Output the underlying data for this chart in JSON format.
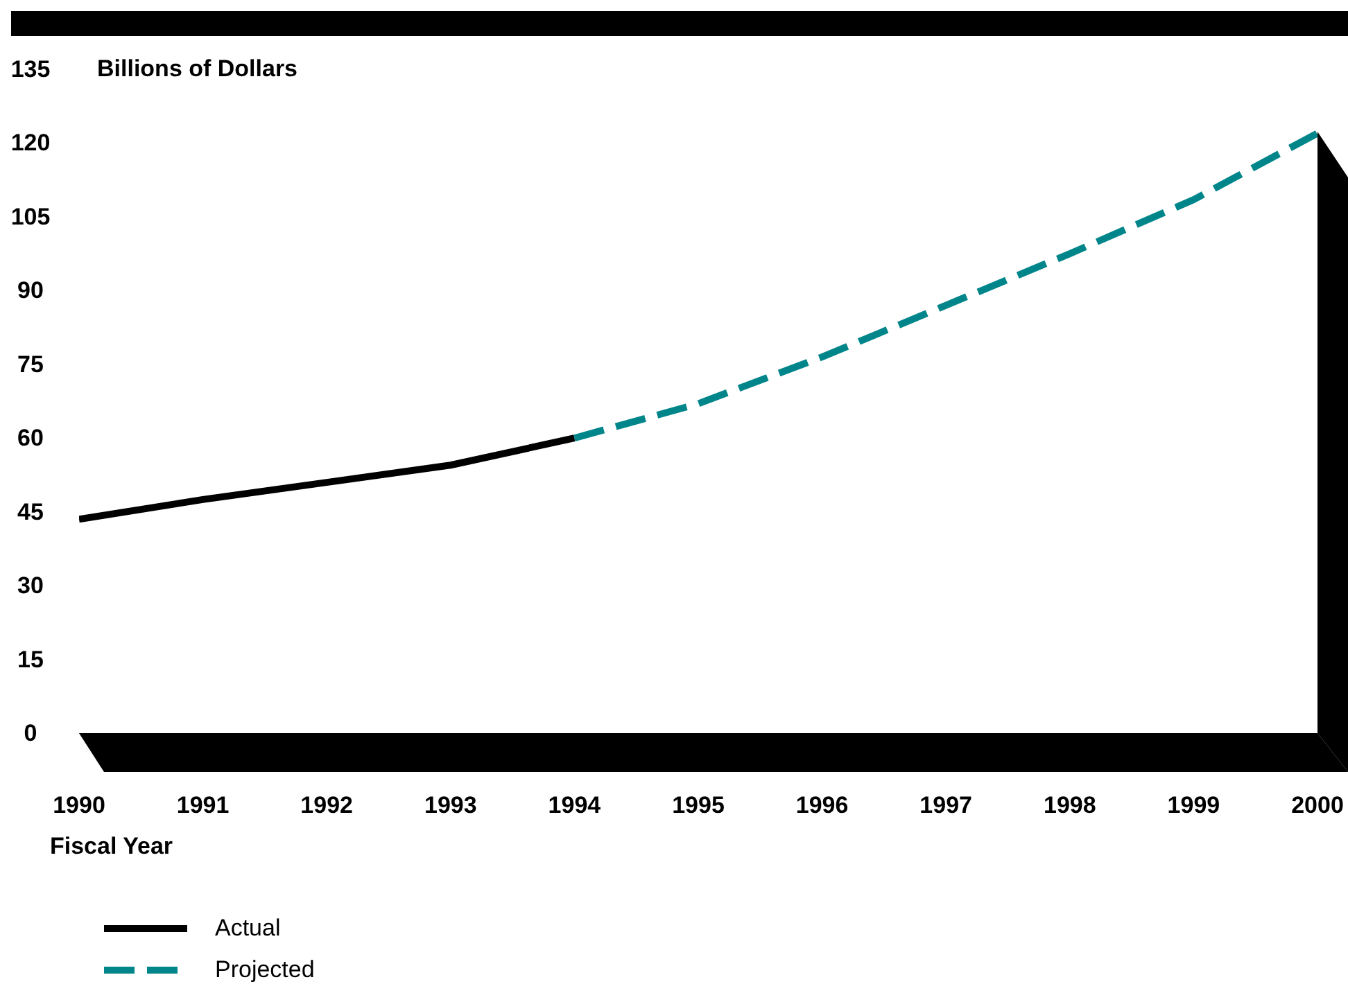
{
  "chart_data": {
    "type": "line",
    "ylabel": "Billions of Dollars",
    "xlabel": "Fiscal Year",
    "x": [
      1990,
      1991,
      1992,
      1993,
      1994,
      1995,
      1996,
      1997,
      1998,
      1999,
      2000
    ],
    "series": [
      {
        "name": "Actual",
        "color": "#000000",
        "line_style": "solid",
        "values": [
          43.5,
          47.5,
          51,
          54.5,
          60,
          null,
          null,
          null,
          null,
          null,
          null
        ]
      },
      {
        "name": "Projected",
        "color": "#00868a",
        "line_style": "dashed",
        "values": [
          null,
          null,
          null,
          null,
          60,
          67,
          76.5,
          87,
          97.5,
          108.5,
          122
        ]
      }
    ],
    "xlim": [
      1990,
      2000
    ],
    "xticks": [
      1990,
      1991,
      1992,
      1993,
      1994,
      1995,
      1996,
      1997,
      1998,
      1999,
      2000
    ],
    "ylim": [
      0,
      135
    ],
    "yticks": [
      0,
      15,
      30,
      45,
      60,
      75,
      90,
      105,
      120,
      135
    ],
    "grid": false,
    "marker": "none",
    "legend": "bottom left"
  }
}
